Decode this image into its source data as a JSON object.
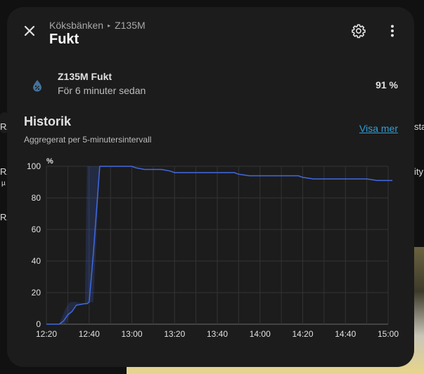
{
  "dialog": {
    "breadcrumb": {
      "area": "Köksbänken",
      "device": "Z135M"
    },
    "title": "Fukt"
  },
  "entity": {
    "name": "Z135M Fukt",
    "last_changed": "För 6 minuter sedan",
    "value": "91 %"
  },
  "history": {
    "title": "Historik",
    "subtitle": "Aggregerat per 5-minutersintervall",
    "show_more": "Visa mer"
  },
  "background": {
    "left_fragments": [
      "RA",
      "RA",
      "µ",
      "RA"
    ],
    "right_fragments": [
      "sta",
      "ity"
    ]
  },
  "colors": {
    "line": "#4169e1",
    "link": "#2e9fd8",
    "dialog_bg": "#1c1c1c"
  },
  "icons": [
    "close-icon",
    "gear-icon",
    "dots-vertical-icon",
    "water-percent-icon"
  ],
  "chart_data": {
    "type": "line",
    "ylabel": "%",
    "ylim": [
      0,
      100
    ],
    "yticks": [
      "0",
      "20",
      "40",
      "60",
      "80",
      "100"
    ],
    "xticks": [
      "12:20",
      "12:30",
      "12:40",
      "12:50",
      "13:00",
      "13:10",
      "13:20",
      "13:30",
      "13:40",
      "13:50",
      "14:00",
      "14:10",
      "14:20",
      "14:30",
      "14:40",
      "14:50",
      "15:00"
    ],
    "xtick_labels_shown": [
      "12:20",
      "12:40",
      "13:00",
      "13:20",
      "13:40",
      "14:00",
      "14:20",
      "14:40",
      "15:00"
    ],
    "grid": true,
    "series": [
      {
        "x": [
          "12:20",
          "12:26",
          "12:28",
          "12:30",
          "12:32",
          "12:34",
          "12:38",
          "12:39",
          "12:40",
          "12:42",
          "12:45",
          "13:00",
          "13:02",
          "13:06",
          "13:10",
          "13:14",
          "13:18",
          "13:20",
          "13:30",
          "13:40",
          "13:48",
          "13:50",
          "13:55",
          "14:00",
          "14:10",
          "14:15",
          "14:18",
          "14:20",
          "14:25",
          "14:30",
          "14:40",
          "14:50",
          "14:55",
          "15:00",
          "15:02"
        ],
        "values": [
          0,
          0,
          2,
          6,
          8,
          12,
          13,
          13,
          14,
          45,
          100,
          100,
          99,
          98,
          98,
          98,
          97,
          96,
          96,
          96,
          96,
          95,
          94,
          94,
          94,
          94,
          94,
          93,
          92,
          92,
          92,
          92,
          91,
          91,
          91
        ]
      }
    ],
    "band": {
      "x": [
        "12:20",
        "12:26",
        "12:29",
        "12:31",
        "12:34",
        "12:38",
        "12:39",
        "12:40",
        "12:41",
        "12:42",
        "12:45"
      ],
      "min": [
        0,
        0,
        0,
        6,
        12,
        13,
        13,
        14,
        14,
        14,
        100
      ],
      "max": [
        0,
        0,
        10,
        14,
        14,
        13,
        100,
        100,
        100,
        100,
        100
      ]
    }
  }
}
